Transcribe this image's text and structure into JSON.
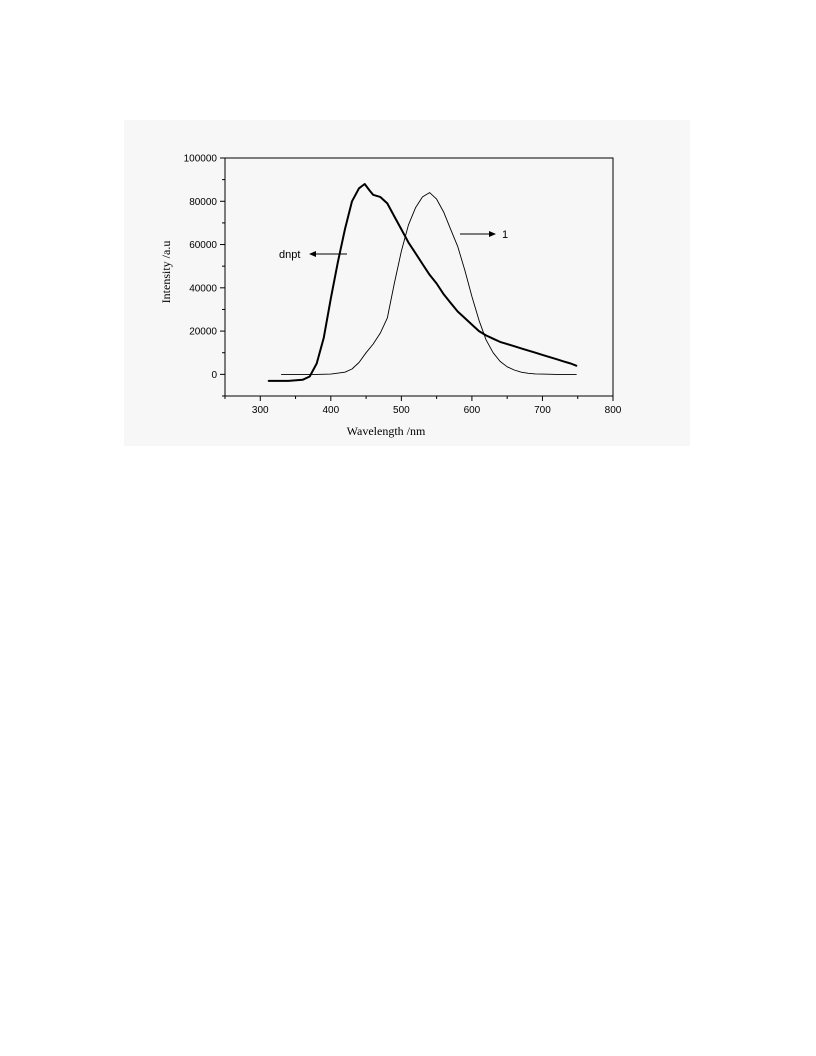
{
  "chart_data": {
    "type": "line",
    "xlabel": "Wavelength /nm",
    "ylabel": "Intensity /a.u",
    "xlim": [
      250,
      800
    ],
    "ylim": [
      -10000,
      100000
    ],
    "xticks": [
      300,
      400,
      500,
      600,
      700,
      800
    ],
    "yticks": [
      0,
      20000,
      40000,
      60000,
      80000,
      100000
    ],
    "grid": false,
    "series": [
      {
        "name": "dnpt",
        "style": "thick",
        "color": "#000000",
        "x": [
          312,
          340,
          360,
          370,
          380,
          390,
          400,
          410,
          420,
          430,
          440,
          448,
          455,
          460,
          470,
          480,
          490,
          500,
          510,
          520,
          530,
          540,
          550,
          560,
          570,
          580,
          590,
          600,
          610,
          620,
          630,
          640,
          650,
          660,
          670,
          680,
          690,
          700,
          710,
          720,
          730,
          740,
          748
        ],
        "y": [
          -3000,
          -3000,
          -2500,
          -1000,
          5000,
          17000,
          35000,
          52000,
          67000,
          80000,
          86000,
          88000,
          85000,
          83000,
          82000,
          79000,
          73000,
          67000,
          61000,
          56000,
          51000,
          46000,
          42000,
          37000,
          33000,
          29000,
          26000,
          23000,
          20000,
          18000,
          16500,
          15000,
          14000,
          13000,
          12000,
          11000,
          10000,
          9000,
          8000,
          7000,
          6000,
          5000,
          4000
        ]
      },
      {
        "name": "1",
        "style": "thin",
        "color": "#000000",
        "x": [
          330,
          360,
          380,
          400,
          420,
          430,
          440,
          450,
          460,
          470,
          480,
          490,
          500,
          510,
          520,
          530,
          540,
          550,
          560,
          570,
          580,
          590,
          600,
          610,
          620,
          630,
          640,
          650,
          660,
          670,
          680,
          690,
          700,
          720,
          748
        ],
        "y": [
          0,
          0,
          0,
          100,
          1000,
          2500,
          5500,
          10000,
          14000,
          19000,
          26000,
          42000,
          57000,
          69000,
          77000,
          82000,
          84000,
          81000,
          75000,
          67000,
          59000,
          48000,
          36000,
          25000,
          16000,
          10000,
          6000,
          3500,
          2000,
          1000,
          500,
          200,
          100,
          0,
          0
        ]
      }
    ],
    "annotations": [
      {
        "text": "dnpt",
        "target_series": "dnpt",
        "arrow_direction": "left"
      },
      {
        "text": "1",
        "target_series": "1",
        "arrow_direction": "right"
      }
    ]
  }
}
